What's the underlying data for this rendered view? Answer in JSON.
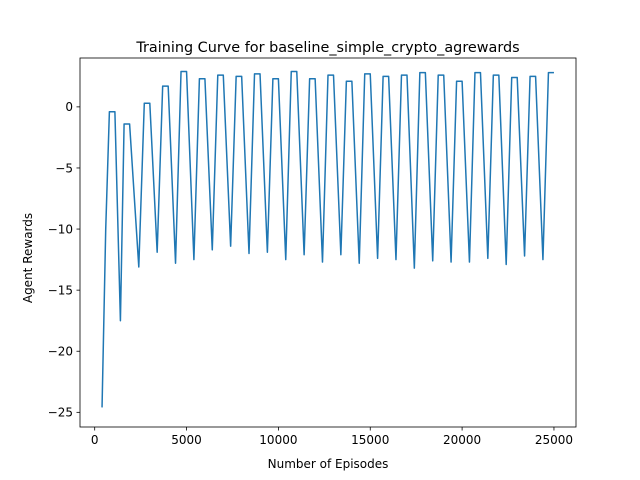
{
  "chart_data": {
    "type": "line",
    "title": "Training Curve for baseline_simple_crypto_agrewards",
    "xlabel": "Number of Episodes",
    "ylabel": "Agent Rewards",
    "xlim": [
      -800,
      26200
    ],
    "ylim": [
      -26.2,
      4.0
    ],
    "xticks": [
      0,
      5000,
      10000,
      15000,
      20000,
      25000
    ],
    "yticks": [
      -25,
      -20,
      -15,
      -10,
      -5,
      0
    ],
    "grid": false,
    "color": "#1f77b4",
    "series": [
      {
        "x": [
          400,
          600,
          800,
          1100,
          1400,
          1600,
          1900,
          2400,
          2700,
          3000,
          3400,
          3700,
          4000,
          4400,
          4700,
          5000,
          5400,
          5700,
          6000,
          6400,
          6700,
          7000,
          7400,
          7700,
          8000,
          8400,
          8700,
          9000,
          9400,
          9700,
          10000,
          10400,
          10700,
          11000,
          11400,
          11700,
          12000,
          12400,
          12700,
          13000,
          13400,
          13700,
          14000,
          14400,
          14700,
          15000,
          15400,
          15700,
          16000,
          16400,
          16700,
          17000,
          17400,
          17700,
          18000,
          18400,
          18700,
          19000,
          19400,
          19700,
          20000,
          20400,
          20700,
          21000,
          21400,
          21700,
          22000,
          22400,
          22700,
          23000,
          23400,
          23700,
          24000,
          24400,
          24700,
          25000
        ],
        "y": [
          -24.6,
          -10.0,
          -0.4,
          -0.4,
          -17.5,
          -1.4,
          -1.4,
          -13.1,
          0.3,
          0.3,
          -11.9,
          1.7,
          1.7,
          -12.8,
          2.9,
          2.9,
          -12.5,
          2.3,
          2.3,
          -11.7,
          2.6,
          2.6,
          -11.4,
          2.5,
          2.5,
          -12.0,
          2.7,
          2.7,
          -11.9,
          2.3,
          2.3,
          -12.5,
          2.9,
          2.9,
          -12.1,
          2.3,
          2.3,
          -12.7,
          2.6,
          2.6,
          -12.1,
          2.1,
          2.1,
          -12.8,
          2.7,
          2.7,
          -12.4,
          2.5,
          2.5,
          -12.5,
          2.6,
          2.6,
          -13.2,
          2.8,
          2.8,
          -12.6,
          2.6,
          2.6,
          -12.7,
          2.1,
          2.1,
          -12.7,
          2.8,
          2.8,
          -12.4,
          2.6,
          2.6,
          -12.9,
          2.4,
          2.4,
          -12.2,
          2.5,
          2.5,
          -12.5,
          2.8,
          2.8
        ]
      }
    ]
  }
}
